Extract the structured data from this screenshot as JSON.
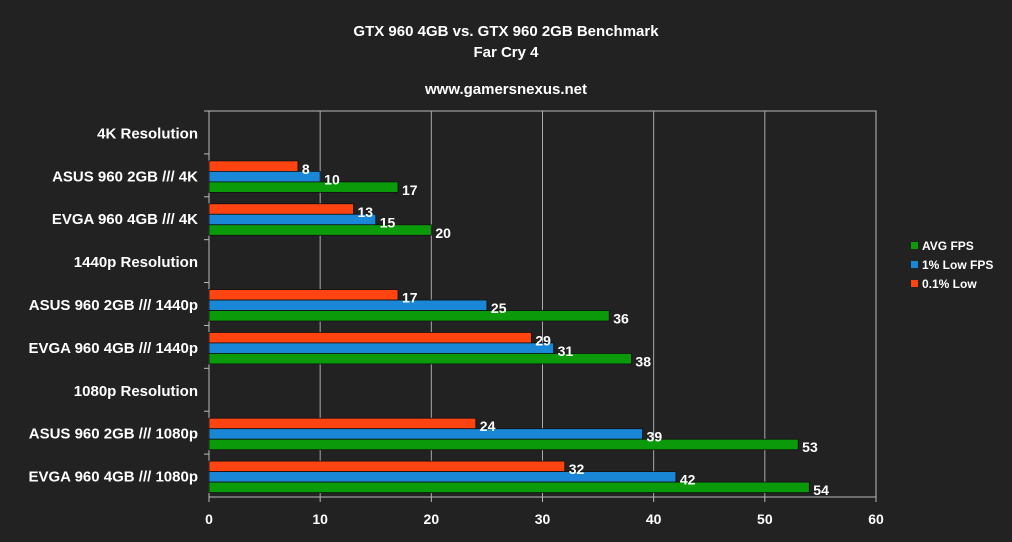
{
  "chart_data": {
    "type": "bar",
    "orientation": "horizontal",
    "title": "GTX 960 4GB vs. GTX 960 2GB Benchmark",
    "subtitle": "Far Cry 4",
    "watermark": "www.gamersnexus.net",
    "categories": [
      "4K Resolution",
      "ASUS 960 2GB /// 4K",
      "EVGA 960 4GB /// 4K",
      "1440p Resolution",
      "ASUS 960 2GB /// 1440p",
      "EVGA 960 4GB /// 1440p",
      "1080p Resolution",
      "ASUS 960 2GB /// 1080p",
      "EVGA 960 4GB /// 1080p"
    ],
    "series": [
      {
        "name": "0.1% Low",
        "color": "#ff4411",
        "values": [
          null,
          8,
          13,
          null,
          17,
          29,
          null,
          24,
          32
        ]
      },
      {
        "name": "1% Low FPS",
        "color": "#1a86d6",
        "values": [
          null,
          10,
          15,
          null,
          25,
          31,
          null,
          39,
          42
        ]
      },
      {
        "name": "AVG FPS",
        "color": "#0a9a0a",
        "values": [
          null,
          17,
          20,
          null,
          36,
          38,
          null,
          53,
          54
        ]
      }
    ],
    "legend_order": [
      "AVG FPS",
      "1% Low FPS",
      "0.1% Low"
    ],
    "xlim": [
      0,
      60
    ],
    "xticks": [
      0,
      10,
      20,
      30,
      40,
      50,
      60
    ],
    "grid": true,
    "legend_position": "right",
    "background": "#222222"
  }
}
